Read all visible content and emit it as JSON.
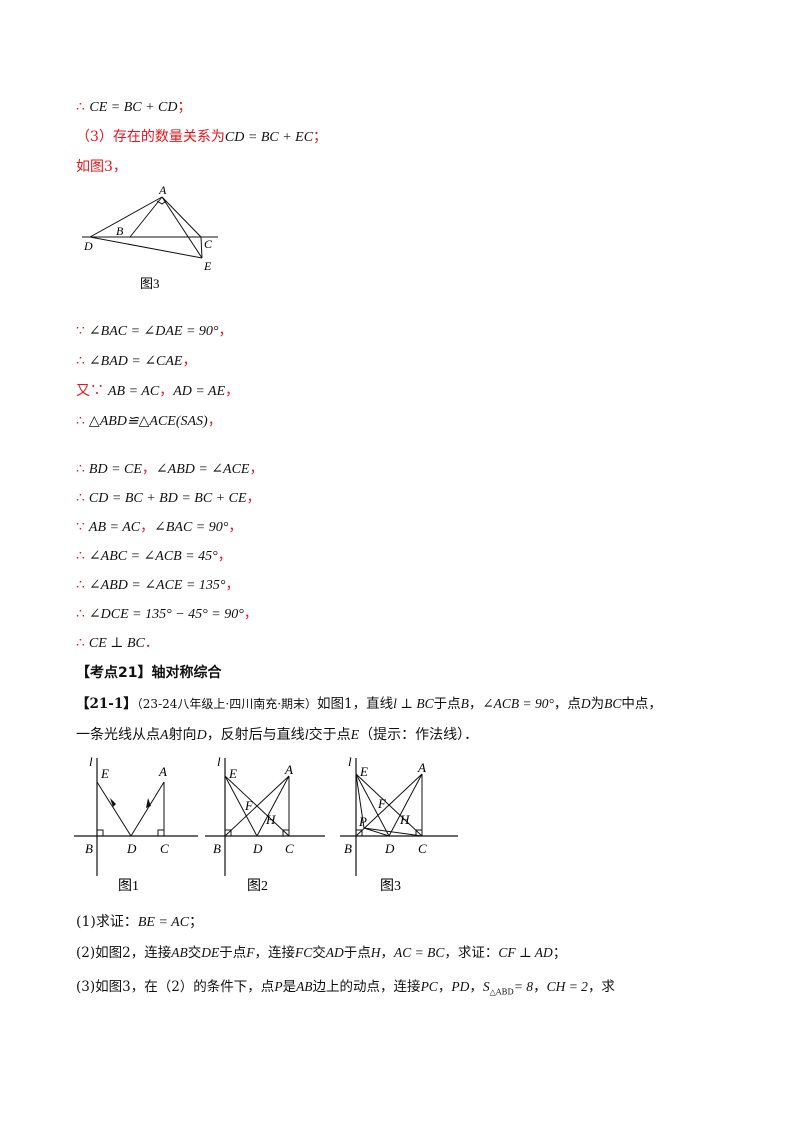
{
  "lines": {
    "l1": {
      "sym": "∴",
      "math": "CE = BC + CD",
      "tail": "；"
    },
    "l2": {
      "text": "（3）存在的数量关系为",
      "math": "CD = BC + EC",
      "tail": "；"
    },
    "l3": {
      "text": "如图3，"
    },
    "s1": {
      "sym": "∵",
      "math": "∠BAC = ∠DAE = 90°",
      "tail": "，"
    },
    "s2": {
      "sym": "∴",
      "math": "∠BAD = ∠CAE",
      "tail": "，"
    },
    "s3": {
      "sym": "又∵",
      "math1": "AB = AC",
      "sep": "，",
      "math2": "AD = AE",
      "tail": "，"
    },
    "s4": {
      "sym": "∴",
      "math": "△ABD≌△ACE(SAS)",
      "tail": "，"
    },
    "s5": {
      "sym": "∴",
      "math1": "BD = CE",
      "sep": "，",
      "math2": "∠ABD = ∠ACE",
      "tail": "，"
    },
    "s6": {
      "sym": "∴",
      "math": "CD = BC + BD = BC + CE",
      "tail": "，"
    },
    "s7": {
      "sym": "∵",
      "math1": "AB = AC",
      "sep": "，",
      "math2": "∠BAC = 90°",
      "tail": "，"
    },
    "s8": {
      "sym": "∴",
      "math": "∠ABC = ∠ACB = 45°",
      "tail": "，"
    },
    "s9": {
      "sym": "∴",
      "math": "∠ABD = ∠ACE = 135°",
      "tail": "，"
    },
    "s10": {
      "sym": "∴",
      "math": "∠DCE = 135° − 45° = 90°",
      "tail": "，"
    },
    "s11": {
      "sym": "∴",
      "math": "CE ⊥ BC",
      "tail": "．"
    }
  },
  "section": {
    "heading": "【考点21】轴对称综合"
  },
  "problem": {
    "id": "【21-1】",
    "source": "（23-24八年级上·四川南充·期末）",
    "stmt1a": "如图1，直线",
    "stmt1m1": "l ⊥ BC",
    "stmt1b": "于点",
    "stmt1m2": "B",
    "stmt1c": "，",
    "stmt1m3": "∠ACB = 90°",
    "stmt1d": "，点",
    "stmt1m4": "D",
    "stmt1e": "为",
    "stmt1m5": "BC",
    "stmt1f": "中点，",
    "stmt2a": "一条光线从点",
    "stmt2m1": "A",
    "stmt2b": "射向",
    "stmt2m2": "D",
    "stmt2c": "，反射后与直线",
    "stmt2m3": "l",
    "stmt2d": "交于点",
    "stmt2m4": "E",
    "stmt2e": "（提示：作法线）．",
    "q1a": "(1)求证：",
    "q1m": "BE = AC",
    "q1b": "；",
    "q2a": "(2)如图2，连接",
    "q2m1": "AB",
    "q2b": "交",
    "q2m2": "DE",
    "q2c": "于点",
    "q2m3": "F",
    "q2d": "，连接",
    "q2m4": "FC",
    "q2e": "交",
    "q2m5": "AD",
    "q2f": "于点",
    "q2m6": "H",
    "q2g": "，",
    "q2m7": "AC = BC",
    "q2h": "，求证：",
    "q2m8": "CF ⊥ AD",
    "q2i": "；",
    "q3a": "(3)如图3，在（2）的条件下，点",
    "q3m1": "P",
    "q3b": "是",
    "q3m2": "AB",
    "q3c": "边上的动点，连接",
    "q3m3": "PC",
    "q3d": "，",
    "q3m4": "PD",
    "q3e": "，",
    "q3m5": "S",
    "q3m5sub": "△ABD",
    "q3m6": "= 8",
    "q3f": "，",
    "q3m7": "CH = 2",
    "q3g": "，求"
  },
  "figures": {
    "top": {
      "caption": "图3",
      "labels": {
        "A": "A",
        "B": "B",
        "C": "C",
        "D": "D",
        "E": "E"
      }
    },
    "f1": {
      "caption": "图1",
      "labels": {
        "l": "l",
        "E": "E",
        "A": "A",
        "B": "B",
        "D": "D",
        "C": "C"
      }
    },
    "f2": {
      "caption": "图2",
      "labels": {
        "l": "l",
        "E": "E",
        "A": "A",
        "F": "F",
        "H": "H",
        "B": "B",
        "D": "D",
        "C": "C"
      }
    },
    "f3": {
      "caption": "图3",
      "labels": {
        "l": "l",
        "E": "E",
        "A": "A",
        "F": "F",
        "H": "H",
        "P": "P",
        "B": "B",
        "D": "D",
        "C": "C"
      }
    }
  }
}
